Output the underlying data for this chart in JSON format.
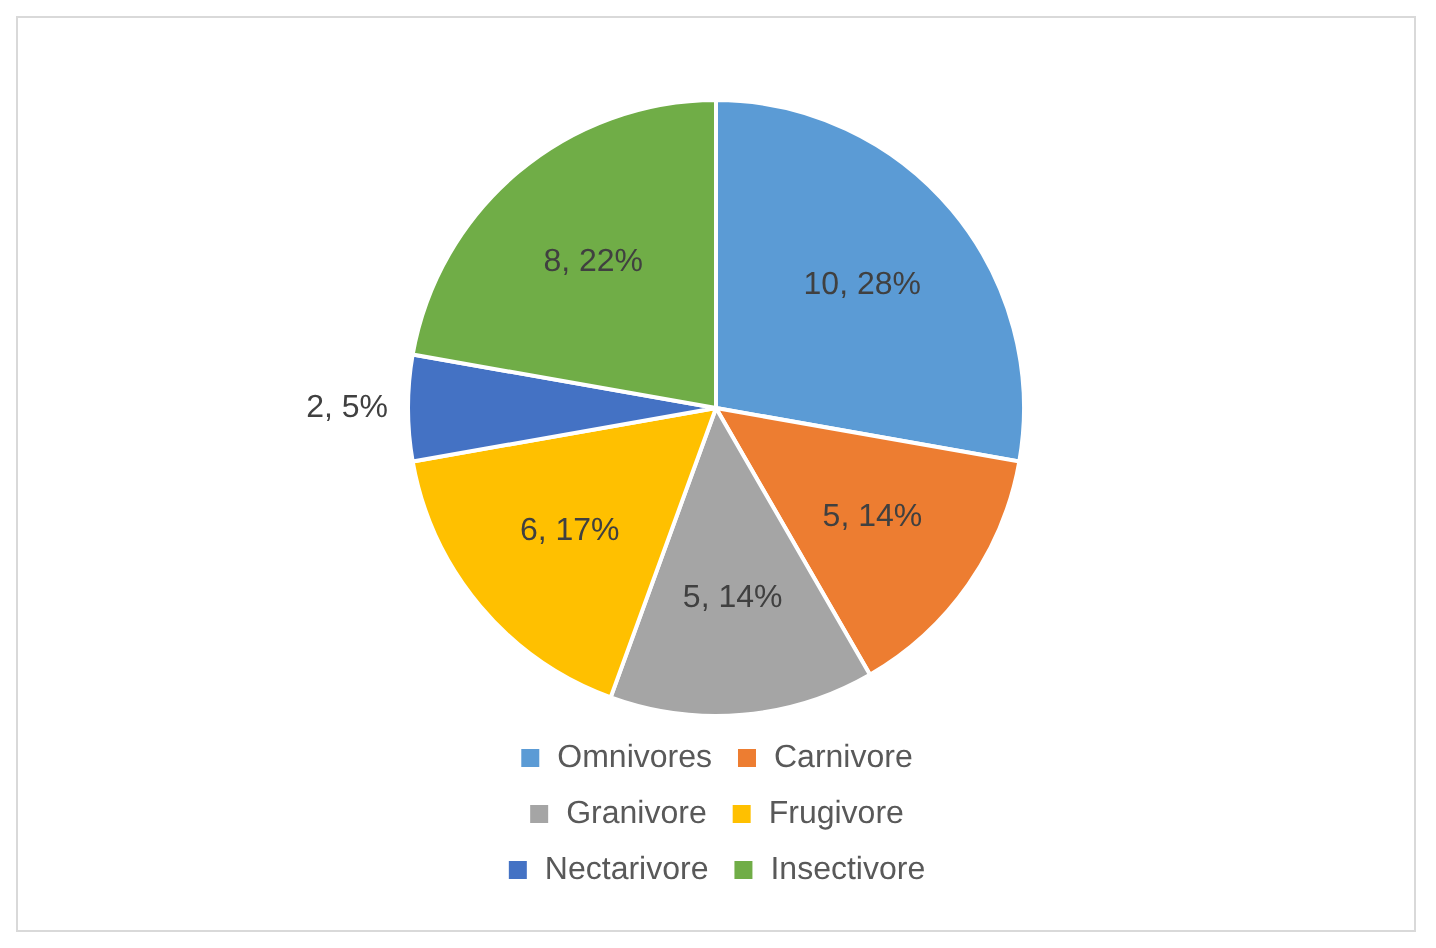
{
  "chart_data": {
    "type": "pie",
    "categories": [
      "Omnivores",
      "Carnivore",
      "Granivore",
      "Frugivore",
      "Nectarivore",
      "Insectivore"
    ],
    "values": [
      10,
      5,
      5,
      6,
      2,
      8
    ],
    "colors": [
      "#5b9bd5",
      "#ed7d31",
      "#a5a5a5",
      "#ffc000",
      "#4472c4",
      "#70ad47"
    ],
    "value_labels": [
      "10, 28%",
      "5, 14%",
      "5, 14%",
      "6, 17%",
      "2, 5%",
      "8, 22%"
    ],
    "legend": "bottom"
  }
}
